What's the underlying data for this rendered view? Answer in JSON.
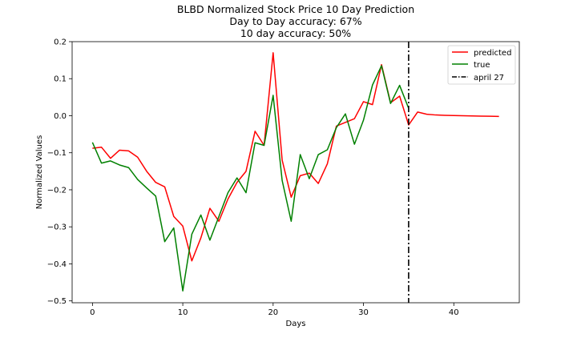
{
  "chart_data": {
    "type": "line",
    "title_lines": [
      "BLBD Normalized Stock Price 10 Day Prediction",
      "Day to Day accuracy: 67%",
      "10 day accuracy: 50%"
    ],
    "xlabel": "Days",
    "ylabel": "Normalized Values",
    "xlim": [
      -2.25,
      47.25
    ],
    "ylim": [
      -0.505,
      0.2
    ],
    "x_ticks": [
      0,
      10,
      20,
      30,
      40
    ],
    "y_ticks": [
      -0.5,
      -0.4,
      -0.3,
      -0.2,
      -0.1,
      0.0,
      0.1,
      0.2
    ],
    "y_tick_labels": [
      "−0.5",
      "−0.4",
      "−0.3",
      "−0.2",
      "−0.1",
      "0.0",
      "0.1",
      "0.2"
    ],
    "grid": false,
    "legend_position": "top-right",
    "series": [
      {
        "name": "predicted",
        "color": "#ff0000",
        "x": [
          0,
          1,
          2,
          3,
          4,
          5,
          6,
          7,
          8,
          9,
          10,
          11,
          12,
          13,
          14,
          15,
          16,
          17,
          18,
          19,
          20,
          21,
          22,
          23,
          24,
          25,
          26,
          27,
          28,
          29,
          30,
          31,
          32,
          33,
          34,
          35,
          36,
          37,
          38,
          39,
          40,
          41,
          42,
          43,
          44,
          45
        ],
        "values": [
          -0.088,
          -0.085,
          -0.115,
          -0.093,
          -0.095,
          -0.112,
          -0.15,
          -0.18,
          -0.192,
          -0.272,
          -0.298,
          -0.392,
          -0.33,
          -0.25,
          -0.285,
          -0.225,
          -0.18,
          -0.15,
          -0.042,
          -0.08,
          0.17,
          -0.12,
          -0.22,
          -0.162,
          -0.155,
          -0.183,
          -0.13,
          -0.028,
          -0.018,
          -0.008,
          0.038,
          0.03,
          0.138,
          0.035,
          0.053,
          -0.025,
          0.01,
          0.004,
          0.002,
          0.001,
          0.0005,
          0.0,
          -0.0005,
          -0.001,
          -0.0015,
          -0.002
        ]
      },
      {
        "name": "true",
        "color": "#008000",
        "x": [
          0,
          1,
          2,
          3,
          4,
          5,
          6,
          7,
          8,
          9,
          10,
          11,
          12,
          13,
          14,
          15,
          16,
          17,
          18,
          19,
          20,
          21,
          22,
          23,
          24,
          25,
          26,
          27,
          28,
          29,
          30,
          31,
          32,
          33,
          34,
          35
        ],
        "values": [
          -0.072,
          -0.128,
          -0.122,
          -0.133,
          -0.14,
          -0.172,
          -0.195,
          -0.217,
          -0.34,
          -0.303,
          -0.473,
          -0.32,
          -0.268,
          -0.336,
          -0.272,
          -0.208,
          -0.168,
          -0.208,
          -0.073,
          -0.08,
          0.055,
          -0.175,
          -0.285,
          -0.105,
          -0.17,
          -0.105,
          -0.092,
          -0.032,
          0.005,
          -0.077,
          -0.012,
          0.083,
          0.135,
          0.033,
          0.082,
          0.02
        ]
      }
    ],
    "vline": {
      "x": 35,
      "label": "april 27",
      "color": "#000000"
    }
  }
}
